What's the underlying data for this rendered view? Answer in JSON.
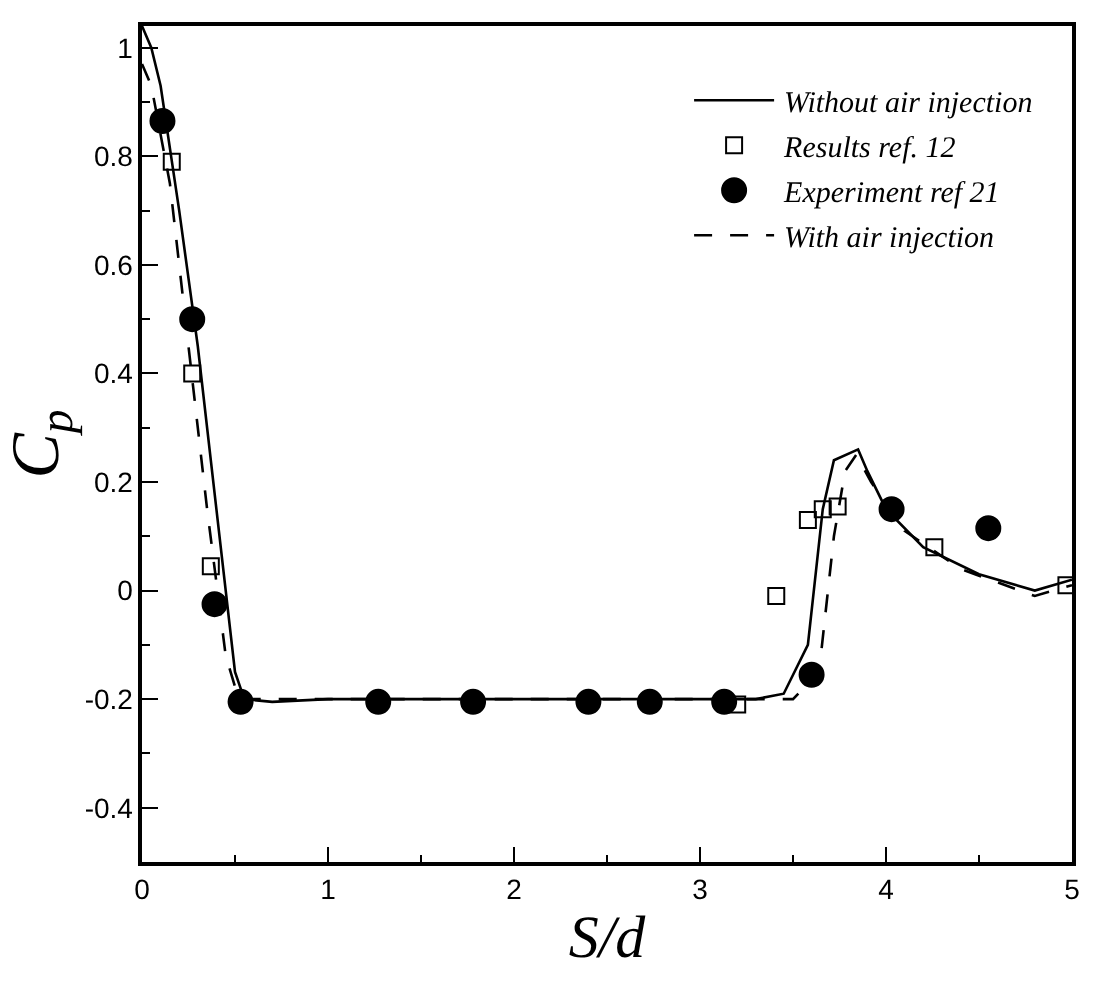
{
  "chart_data": {
    "type": "line",
    "xlabel": "S/d",
    "ylabel": "C$_{p}$",
    "xlim": [
      0,
      5
    ],
    "xticks": [
      0,
      1,
      2,
      3,
      4,
      5
    ],
    "ylim": [
      -0.5,
      1.04
    ],
    "yticks": [
      -0.4,
      -0.2,
      0,
      0.2,
      0.4,
      0.6,
      0.8,
      1
    ],
    "grid": false,
    "legend": "top right",
    "series": [
      {
        "name": "Without air injection",
        "line_style": "solid",
        "marker": "none",
        "color": "#000000",
        "x": [
          0,
          0.05,
          0.1,
          0.2,
          0.3,
          0.4,
          0.5,
          0.55,
          0.7,
          1,
          2,
          3,
          3.3,
          3.45,
          3.58,
          3.66,
          3.72,
          3.85,
          3.9,
          4.0,
          4.2,
          4.5,
          4.8,
          5.0
        ],
        "values": [
          1.04,
          1.0,
          0.93,
          0.7,
          0.45,
          0.15,
          -0.15,
          -0.2,
          -0.205,
          -0.2,
          -0.2,
          -0.2,
          -0.2,
          -0.19,
          -0.1,
          0.15,
          0.24,
          0.26,
          0.22,
          0.15,
          0.08,
          0.03,
          0.0,
          0.02
        ]
      },
      {
        "name": "Results ref. 12",
        "type": "scatter",
        "marker": "square",
        "color": "#000000",
        "x": [
          0.16,
          0.27,
          0.37,
          3.2,
          3.41,
          3.58,
          3.66,
          3.74,
          4.26,
          4.97
        ],
        "values": [
          0.79,
          0.4,
          0.045,
          -0.21,
          -0.01,
          0.13,
          0.15,
          0.155,
          0.08,
          0.01
        ]
      },
      {
        "name": "Experiment ref 21",
        "type": "scatter",
        "marker": "circle",
        "color": "#000000",
        "x": [
          0.11,
          0.27,
          0.39,
          0.53,
          1.27,
          1.78,
          2.4,
          2.73,
          3.13,
          3.6,
          4.03,
          4.55
        ],
        "values": [
          0.865,
          0.5,
          -0.025,
          -0.205,
          -0.205,
          -0.205,
          -0.205,
          -0.205,
          -0.205,
          -0.155,
          0.15,
          0.115
        ]
      },
      {
        "name": "With air injection",
        "line_style": "dashed",
        "marker": "none",
        "color": "#000000",
        "x": [
          0,
          0.05,
          0.15,
          0.25,
          0.35,
          0.45,
          0.52,
          0.7,
          3.3,
          3.5,
          3.64,
          3.72,
          3.78,
          3.84,
          3.92,
          4.1,
          4.4,
          4.8,
          5.0
        ],
        "values": [
          0.97,
          0.93,
          0.75,
          0.45,
          0.15,
          -0.12,
          -0.2,
          -0.2,
          -0.2,
          -0.2,
          -0.15,
          0.1,
          0.22,
          0.25,
          0.2,
          0.11,
          0.04,
          -0.01,
          0.01
        ]
      }
    ]
  }
}
